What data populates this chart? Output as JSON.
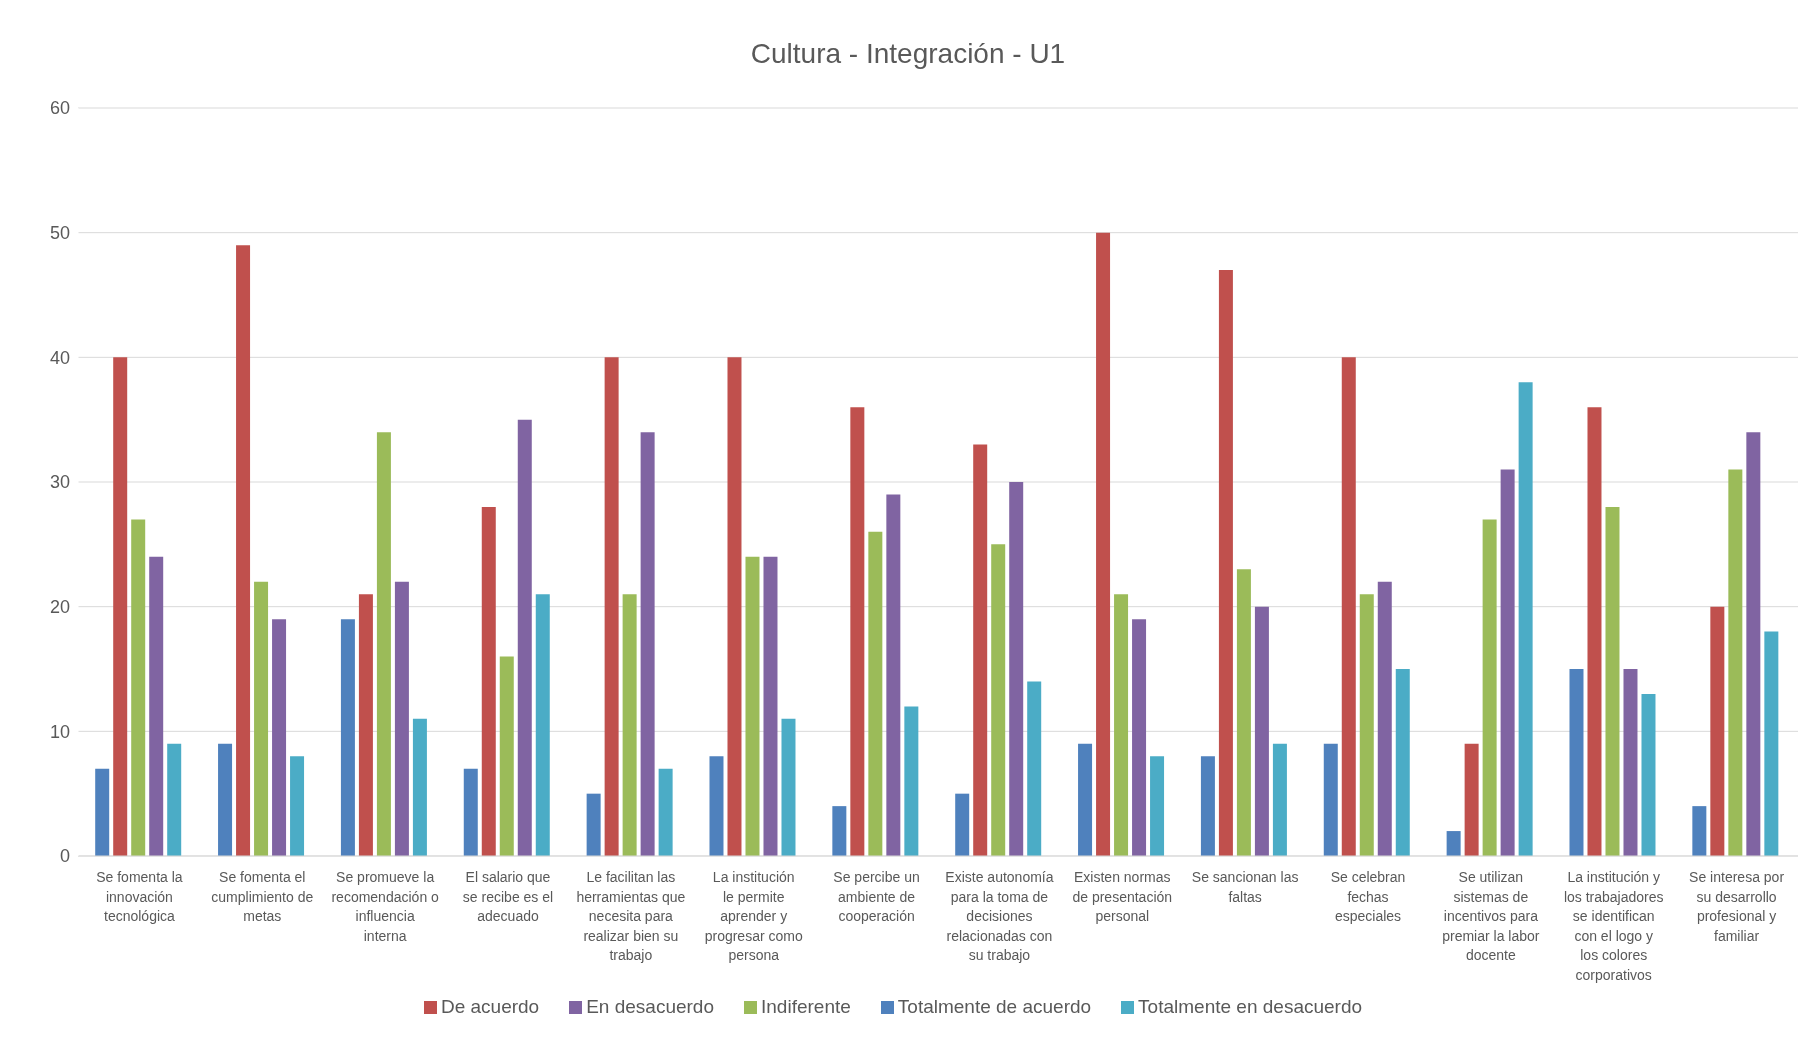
{
  "chart_data": {
    "type": "bar",
    "title": "Cultura - Integración - U1",
    "categories": [
      "Se fomenta la innovación tecnológica",
      "Se fomenta el cumplimiento de metas",
      "Se promueve la recomendación o influencia interna",
      "El salario que se recibe es el adecuado",
      "Le facilitan las herramientas que necesita para realizar bien su trabajo",
      "La institución le permite aprender y progresar como persona",
      "Se percibe un ambiente de cooperación",
      "Existe autonomía para la toma de decisiones relacionadas con su trabajo",
      "Existen normas de presentación personal",
      "Se sancionan las faltas",
      "Se celebran fechas especiales",
      "Se utilizan sistemas de incentivos para premiar la labor docente",
      "La institución y los trabajadores se identifican con el logo y los colores corporativos",
      "Se interesa por su desarrollo profesional y familiar"
    ],
    "series": [
      {
        "name": "Totalmente de acuerdo",
        "color": "#4f81bd",
        "values": [
          7,
          9,
          19,
          7,
          5,
          8,
          4,
          5,
          9,
          8,
          9,
          2,
          15,
          4
        ]
      },
      {
        "name": "De acuerdo",
        "color": "#c0504d",
        "values": [
          40,
          49,
          21,
          28,
          40,
          40,
          36,
          33,
          50,
          47,
          40,
          9,
          36,
          20
        ]
      },
      {
        "name": "Indiferente",
        "color": "#9bbb59",
        "values": [
          27,
          22,
          34,
          16,
          21,
          24,
          26,
          25,
          21,
          23,
          21,
          27,
          28,
          31
        ]
      },
      {
        "name": "En desacuerdo",
        "color": "#8064a2",
        "values": [
          24,
          19,
          22,
          35,
          34,
          24,
          29,
          30,
          19,
          20,
          22,
          31,
          15,
          34
        ]
      },
      {
        "name": "Totalmente en desacuerdo",
        "color": "#4bacc6",
        "values": [
          9,
          8,
          11,
          21,
          7,
          11,
          12,
          14,
          8,
          9,
          15,
          38,
          13,
          18
        ]
      }
    ],
    "ylim": [
      0,
      60
    ],
    "yticks": [
      0,
      10,
      20,
      30,
      40,
      50,
      60
    ],
    "grid": "y",
    "legend": "bottom"
  }
}
